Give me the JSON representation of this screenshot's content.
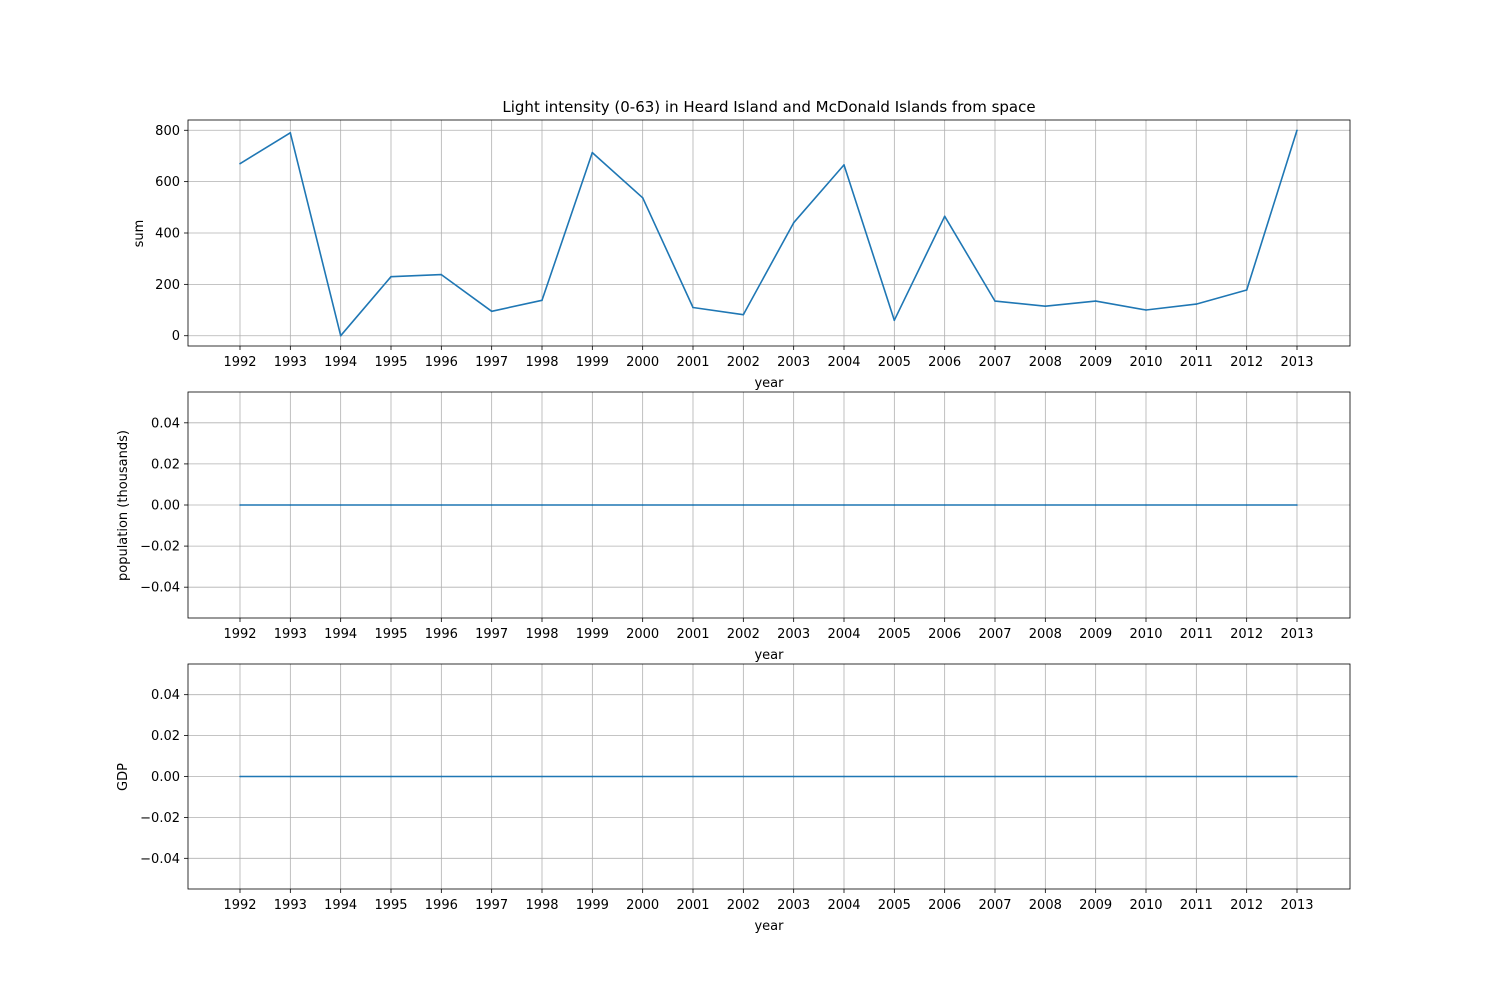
{
  "chart_data": [
    {
      "type": "line",
      "title": "Light intensity (0-63) in Heard Island and McDonald Islands from space",
      "xlabel": "year",
      "ylabel": "sum",
      "x": [
        "1992",
        "1993",
        "1994",
        "1995",
        "1996",
        "1997",
        "1998",
        "1999",
        "2000",
        "2001",
        "2002",
        "2003",
        "2004",
        "2005",
        "2006",
        "2007",
        "2008",
        "2009",
        "2010",
        "2011",
        "2012",
        "2013"
      ],
      "values": [
        670,
        790,
        0,
        230,
        238,
        95,
        138,
        713,
        537,
        110,
        82,
        440,
        665,
        60,
        465,
        135,
        115,
        135,
        100,
        123,
        178,
        800
      ],
      "ylim": [
        -40,
        840
      ],
      "yticks": [
        0,
        200,
        400,
        600,
        800
      ],
      "ytick_labels": [
        "0",
        "200",
        "400",
        "600",
        "800"
      ],
      "grid": true,
      "line_color": "#1f77b4"
    },
    {
      "type": "line",
      "title": "",
      "xlabel": "year",
      "ylabel": "population (thousands)",
      "x": [
        "1992",
        "1993",
        "1994",
        "1995",
        "1996",
        "1997",
        "1998",
        "1999",
        "2000",
        "2001",
        "2002",
        "2003",
        "2004",
        "2005",
        "2006",
        "2007",
        "2008",
        "2009",
        "2010",
        "2011",
        "2012",
        "2013"
      ],
      "values": [
        0,
        0,
        0,
        0,
        0,
        0,
        0,
        0,
        0,
        0,
        0,
        0,
        0,
        0,
        0,
        0,
        0,
        0,
        0,
        0,
        0,
        0
      ],
      "ylim": [
        -0.055,
        0.055
      ],
      "yticks": [
        -0.04,
        -0.02,
        0.0,
        0.02,
        0.04
      ],
      "ytick_labels": [
        "−0.04",
        "−0.02",
        "0.00",
        "0.02",
        "0.04"
      ],
      "grid": true,
      "line_color": "#1f77b4"
    },
    {
      "type": "line",
      "title": "",
      "xlabel": "year",
      "ylabel": "GDP",
      "x": [
        "1992",
        "1993",
        "1994",
        "1995",
        "1996",
        "1997",
        "1998",
        "1999",
        "2000",
        "2001",
        "2002",
        "2003",
        "2004",
        "2005",
        "2006",
        "2007",
        "2008",
        "2009",
        "2010",
        "2011",
        "2012",
        "2013"
      ],
      "values": [
        0,
        0,
        0,
        0,
        0,
        0,
        0,
        0,
        0,
        0,
        0,
        0,
        0,
        0,
        0,
        0,
        0,
        0,
        0,
        0,
        0,
        0
      ],
      "ylim": [
        -0.055,
        0.055
      ],
      "yticks": [
        -0.04,
        -0.02,
        0.0,
        0.02,
        0.04
      ],
      "ytick_labels": [
        "−0.04",
        "−0.02",
        "0.00",
        "0.02",
        "0.04"
      ],
      "grid": true,
      "line_color": "#1f77b4"
    }
  ]
}
